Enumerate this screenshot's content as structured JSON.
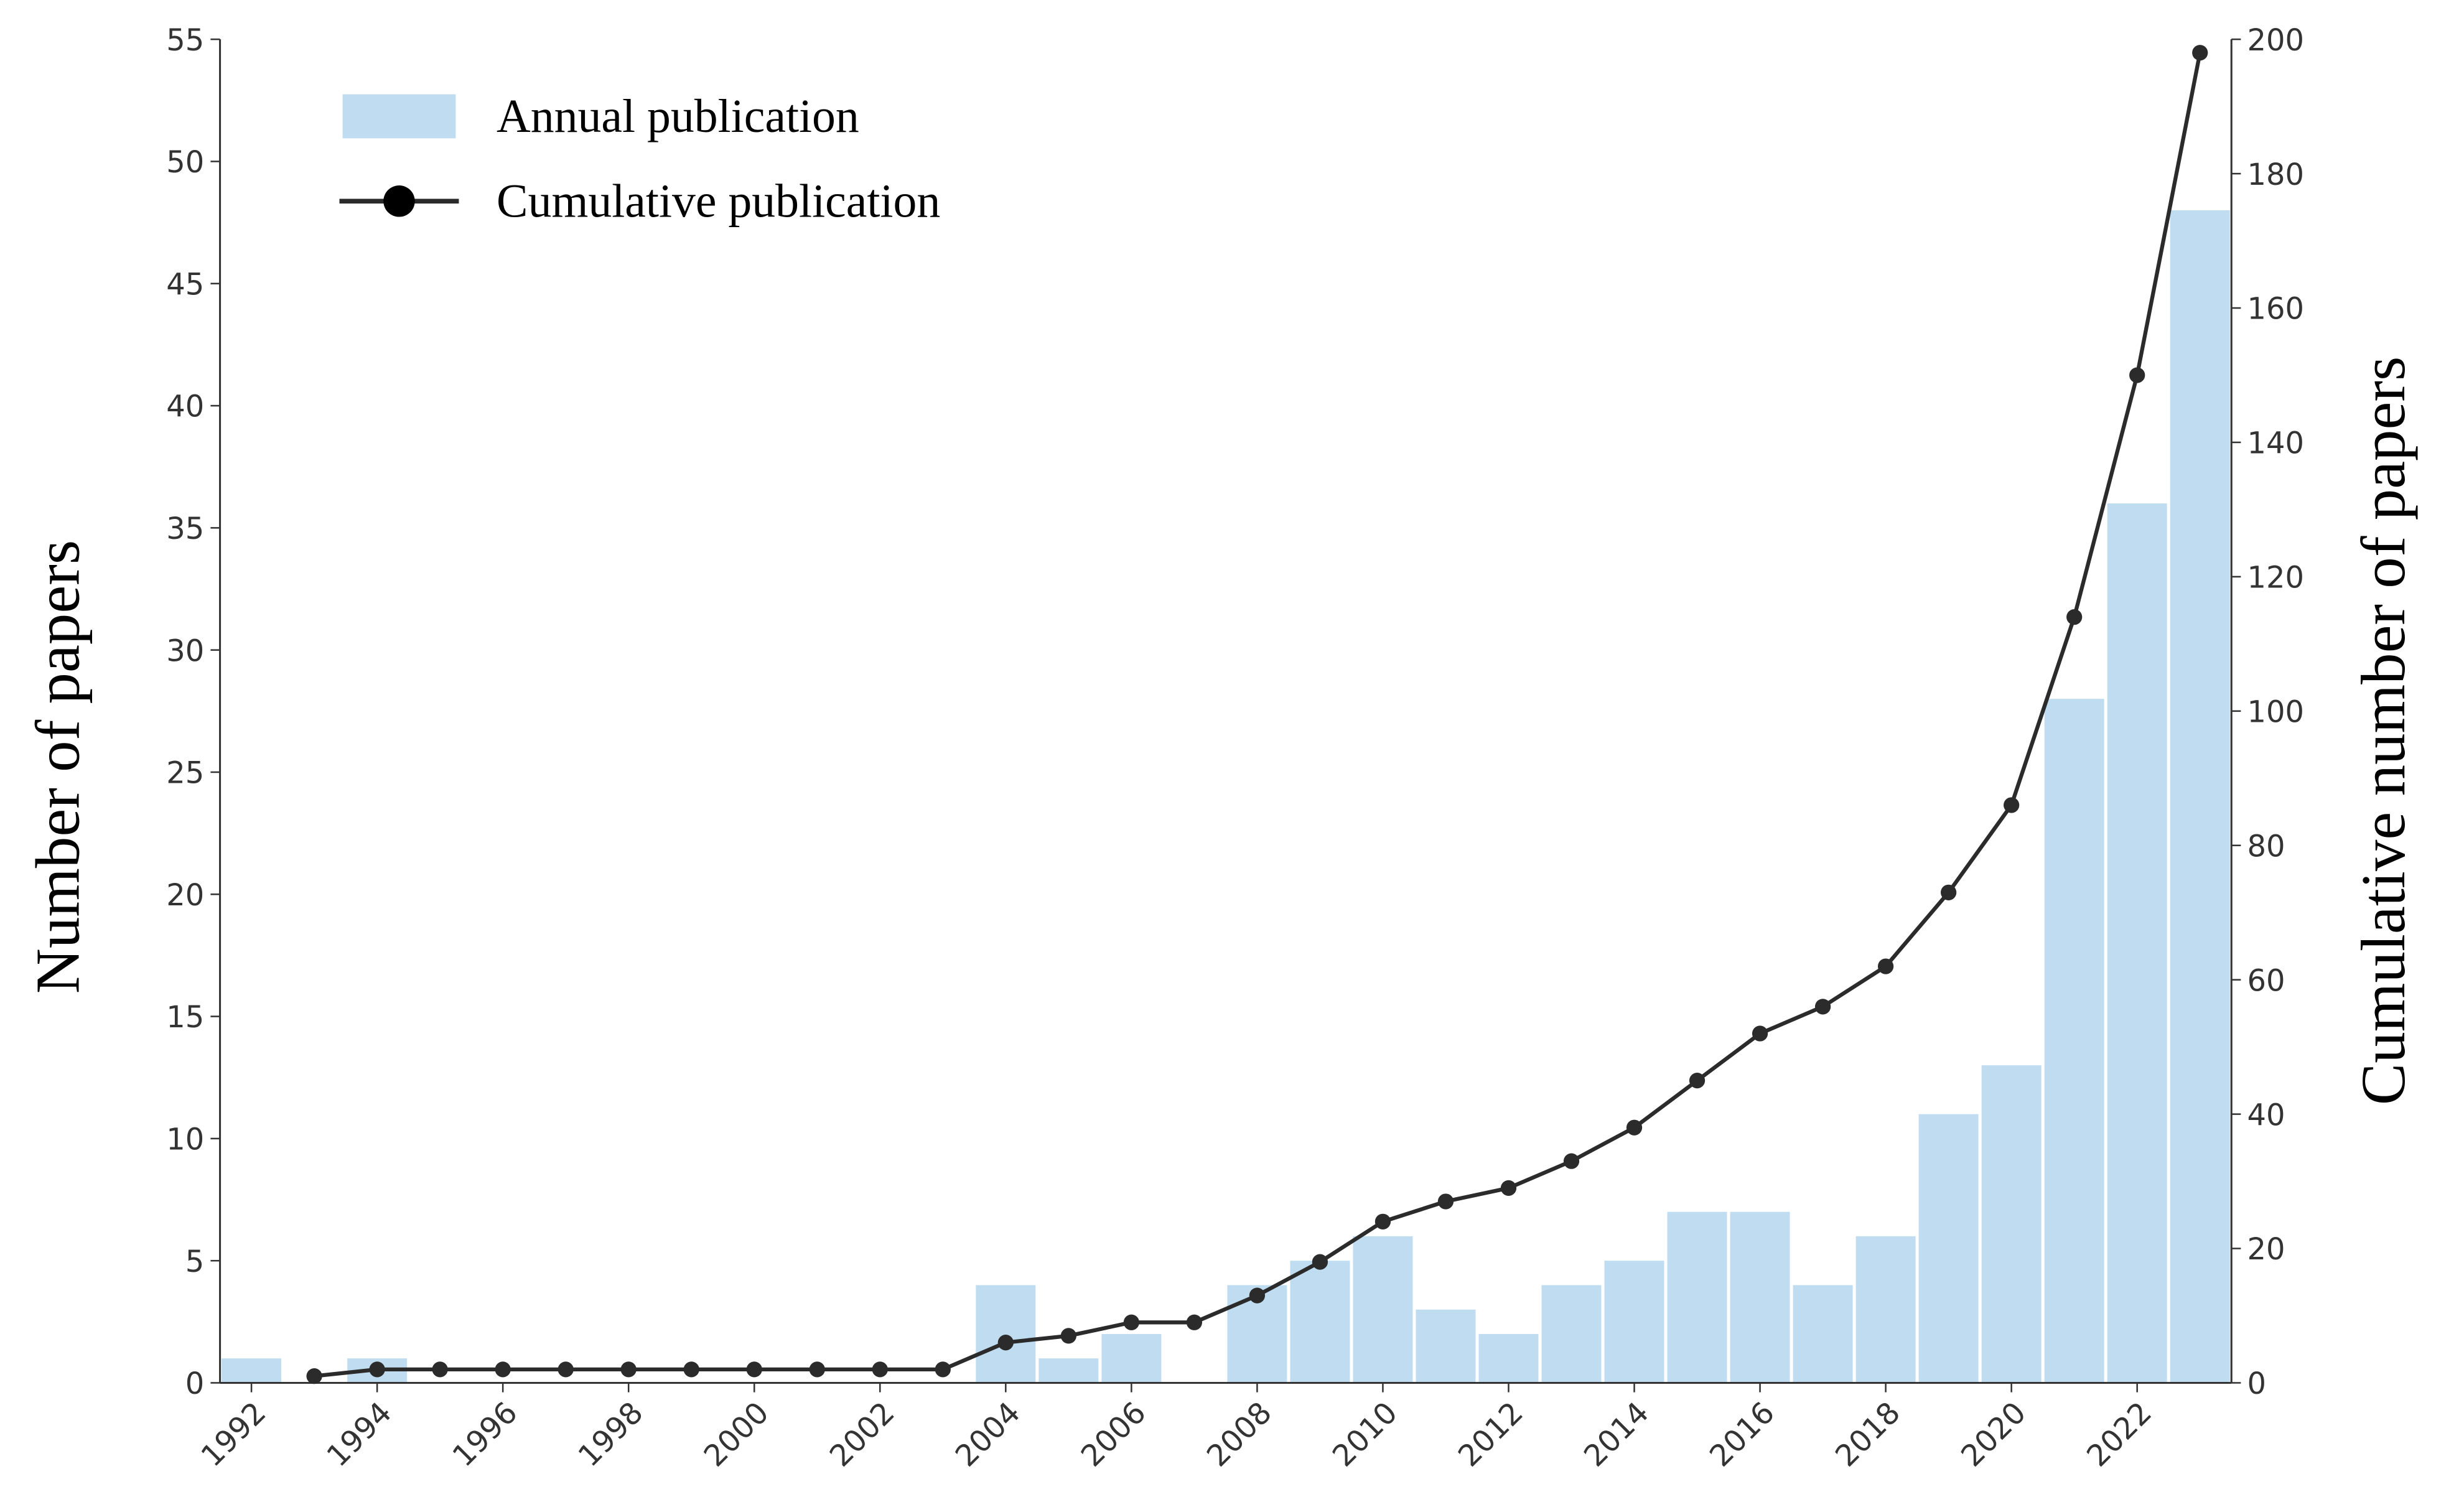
{
  "chart_data": {
    "type": "bar-line",
    "y_label": "Number of papers",
    "y2_label": "Cumulative number of papers",
    "categories": [
      "1992",
      null,
      "1994",
      null,
      "1996",
      null,
      "1998",
      null,
      "2000",
      null,
      "2002",
      null,
      "2004",
      null,
      "2006",
      null,
      "2008",
      null,
      "2010",
      null,
      "2012",
      null,
      "2014",
      null,
      "2016",
      null,
      "2018",
      null,
      "2020",
      null,
      "2022",
      null
    ],
    "series": [
      {
        "name": "Annual publication",
        "type": "bar",
        "color": "#bfdcf1",
        "values": [
          1,
          0,
          1,
          0,
          0,
          0,
          0,
          0,
          0,
          0,
          0,
          0,
          4,
          1,
          2,
          0,
          4,
          5,
          6,
          3,
          2,
          4,
          5,
          7,
          7,
          4,
          6,
          11,
          13,
          28,
          36,
          48
        ]
      },
      {
        "name": "Cumulative publication",
        "type": "line",
        "axis": "y2",
        "color": "#2b2b2b",
        "values": [
          null,
          1,
          2,
          2,
          2,
          2,
          2,
          2,
          2,
          2,
          2,
          2,
          6,
          7,
          9,
          9,
          13,
          18,
          24,
          27,
          29,
          33,
          38,
          45,
          52,
          56,
          62,
          73,
          86,
          114,
          150,
          198
        ]
      }
    ],
    "ylim": [
      0,
      55
    ],
    "yticks": [
      0,
      5,
      10,
      15,
      20,
      25,
      30,
      35,
      40,
      45,
      50,
      55
    ],
    "y2lim": [
      0,
      200
    ],
    "y2ticks": [
      0,
      20,
      40,
      60,
      80,
      100,
      120,
      140,
      160,
      180,
      200
    ],
    "legend": "upper left",
    "grid": false
  }
}
